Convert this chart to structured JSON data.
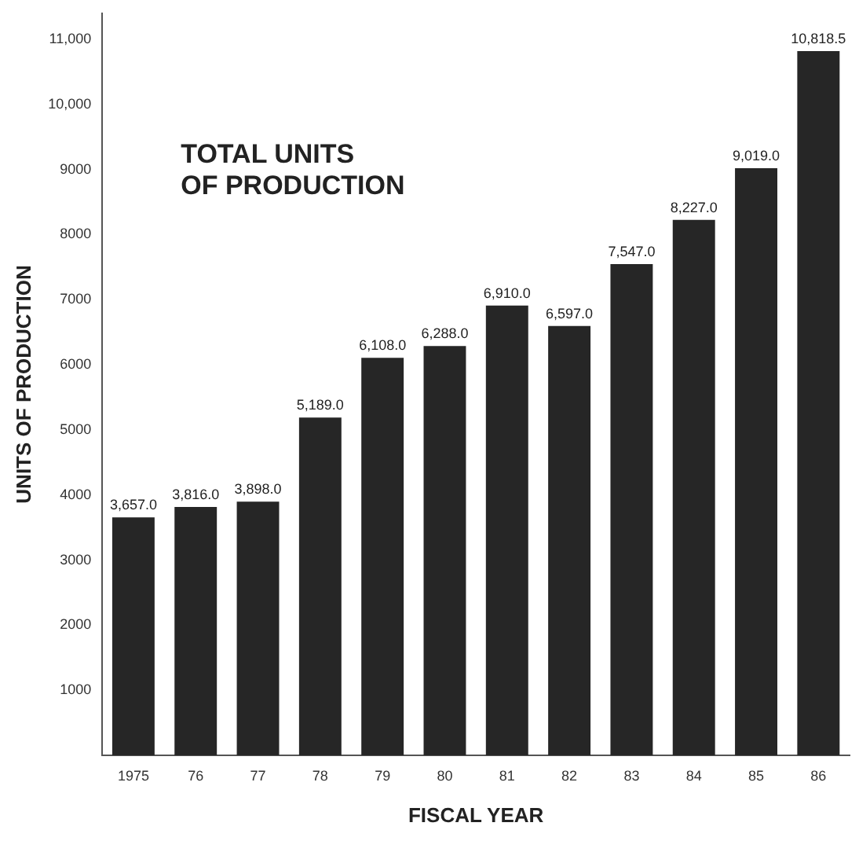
{
  "chart_data": {
    "type": "bar",
    "title": "TOTAL UNITS\nOF PRODUCTION",
    "xlabel": "FISCAL YEAR",
    "ylabel": "UNITS OF PRODUCTION",
    "categories": [
      "1975",
      "76",
      "77",
      "78",
      "79",
      "80",
      "81",
      "82",
      "83",
      "84",
      "85",
      "86"
    ],
    "values": [
      3657.0,
      3816.0,
      3898.0,
      5189.0,
      6108.0,
      6288.0,
      6910.0,
      6597.0,
      7547.0,
      8227.0,
      9019.0,
      10818.5
    ],
    "value_labels": [
      "3,657.0",
      "3,816.0",
      "3,898.0",
      "5,189.0",
      "6,108.0",
      "6,288.0",
      "6,910.0",
      "6,597.0",
      "7,547.0",
      "8,227.0",
      "9,019.0",
      "10,818.5"
    ],
    "color": "#262626",
    "ylim": [
      0,
      11400
    ],
    "yticks": [
      {
        "value": 1000,
        "label": "1000"
      },
      {
        "value": 2000,
        "label": "2000"
      },
      {
        "value": 3000,
        "label": "3000"
      },
      {
        "value": 4000,
        "label": "4000"
      },
      {
        "value": 5000,
        "label": "5000"
      },
      {
        "value": 6000,
        "label": "6000"
      },
      {
        "value": 7000,
        "label": "7000"
      },
      {
        "value": 8000,
        "label": "8000"
      },
      {
        "value": 9000,
        "label": "9000"
      },
      {
        "value": 10000,
        "label": "10,000"
      },
      {
        "value": 11000,
        "label": "11,000"
      }
    ],
    "grid": false,
    "legend": false
  }
}
